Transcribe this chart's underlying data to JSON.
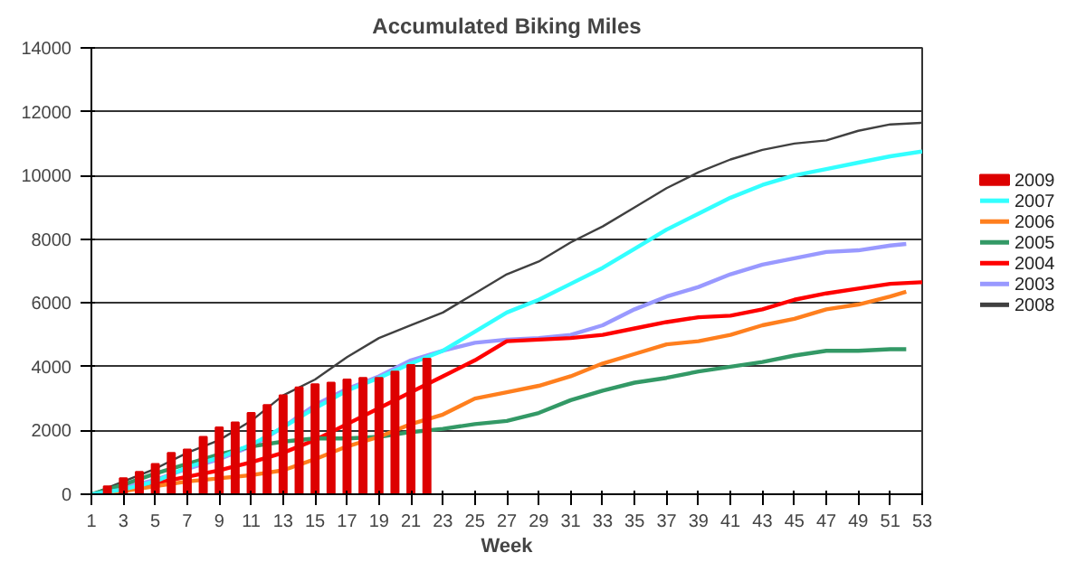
{
  "chart_data": {
    "type": "line",
    "title": "Accumulated Biking Miles",
    "xlabel": "Week",
    "xlim": [
      1,
      53
    ],
    "xticks": [
      1,
      3,
      5,
      7,
      9,
      11,
      13,
      15,
      17,
      19,
      21,
      23,
      25,
      27,
      29,
      31,
      33,
      35,
      37,
      39,
      41,
      43,
      45,
      47,
      49,
      51,
      53
    ],
    "ylim": [
      0,
      14000
    ],
    "yticks": [
      0,
      2000,
      4000,
      6000,
      8000,
      10000,
      12000,
      14000
    ],
    "grid": "y",
    "legend": "right",
    "series": [
      {
        "name": "2009",
        "type": "bar",
        "color": "#dd0000",
        "x": [
          1,
          2,
          3,
          4,
          5,
          6,
          7,
          8,
          9,
          10,
          11,
          12,
          13,
          14,
          15,
          16,
          17,
          18,
          19,
          20,
          21,
          22
        ],
        "values": [
          0,
          250,
          500,
          700,
          950,
          1300,
          1400,
          1800,
          2100,
          2250,
          2550,
          2800,
          3100,
          3350,
          3450,
          3500,
          3600,
          3650,
          3650,
          3850,
          4050,
          4250
        ]
      },
      {
        "name": "2007",
        "color": "#33ffff",
        "x": [
          1,
          3,
          5,
          7,
          9,
          11,
          13,
          15,
          17,
          19,
          21,
          23,
          25,
          27,
          29,
          31,
          33,
          35,
          37,
          39,
          41,
          43,
          45,
          47,
          49,
          51,
          53
        ],
        "values": [
          0,
          150,
          400,
          850,
          1150,
          1550,
          2100,
          2700,
          3250,
          3650,
          4100,
          4500,
          5100,
          5700,
          6100,
          6600,
          7100,
          7700,
          8300,
          8800,
          9300,
          9700,
          10000,
          10200,
          10400,
          10600,
          10750
        ]
      },
      {
        "name": "2006",
        "color": "#ff7f1e",
        "x": [
          1,
          3,
          5,
          7,
          9,
          11,
          13,
          15,
          17,
          19,
          21,
          23,
          25,
          27,
          29,
          31,
          33,
          35,
          37,
          39,
          41,
          43,
          45,
          47,
          49,
          51,
          52
        ],
        "values": [
          0,
          100,
          250,
          400,
          500,
          600,
          750,
          1100,
          1500,
          1800,
          2200,
          2500,
          3000,
          3200,
          3400,
          3700,
          4100,
          4400,
          4700,
          4800,
          5000,
          5300,
          5500,
          5800,
          5950,
          6200,
          6350
        ]
      },
      {
        "name": "2005",
        "color": "#339966",
        "x": [
          1,
          3,
          5,
          7,
          9,
          11,
          13,
          15,
          17,
          19,
          21,
          23,
          25,
          27,
          29,
          31,
          33,
          35,
          37,
          39,
          41,
          43,
          45,
          47,
          49,
          51,
          52
        ],
        "values": [
          0,
          300,
          650,
          950,
          1250,
          1500,
          1650,
          1750,
          1750,
          1800,
          1950,
          2050,
          2200,
          2300,
          2550,
          2950,
          3250,
          3500,
          3650,
          3850,
          4000,
          4150,
          4350,
          4500,
          4500,
          4550,
          4550
        ]
      },
      {
        "name": "2004",
        "color": "#ff0000",
        "x": [
          1,
          3,
          5,
          7,
          9,
          11,
          13,
          15,
          17,
          19,
          21,
          23,
          25,
          27,
          29,
          31,
          33,
          35,
          37,
          39,
          41,
          43,
          45,
          47,
          49,
          51,
          53
        ],
        "values": [
          0,
          150,
          350,
          550,
          750,
          1000,
          1300,
          1700,
          2200,
          2700,
          3200,
          3700,
          4200,
          4800,
          4850,
          4900,
          5000,
          5200,
          5400,
          5550,
          5600,
          5800,
          6100,
          6300,
          6450,
          6600,
          6650
        ]
      },
      {
        "name": "2003",
        "color": "#9999ff",
        "x": [
          1,
          3,
          5,
          7,
          9,
          11,
          13,
          15,
          17,
          19,
          21,
          23,
          25,
          27,
          29,
          31,
          33,
          35,
          37,
          39,
          41,
          43,
          45,
          47,
          49,
          51,
          52
        ],
        "values": [
          0,
          200,
          450,
          800,
          1100,
          1500,
          2100,
          2800,
          3300,
          3700,
          4200,
          4500,
          4750,
          4850,
          4900,
          5000,
          5300,
          5800,
          6200,
          6500,
          6900,
          7200,
          7400,
          7600,
          7650,
          7800,
          7850
        ]
      },
      {
        "name": "2008",
        "color": "#404040",
        "x": [
          1,
          3,
          5,
          7,
          9,
          11,
          13,
          15,
          17,
          19,
          21,
          23,
          25,
          27,
          29,
          31,
          33,
          35,
          37,
          39,
          41,
          43,
          45,
          47,
          49,
          51,
          53
        ],
        "values": [
          0,
          400,
          800,
          1300,
          1700,
          2300,
          3100,
          3600,
          4300,
          4900,
          5300,
          5700,
          6300,
          6900,
          7300,
          7900,
          8400,
          9000,
          9600,
          10100,
          10500,
          10800,
          11000,
          11100,
          11400,
          11600,
          11650
        ]
      }
    ]
  }
}
